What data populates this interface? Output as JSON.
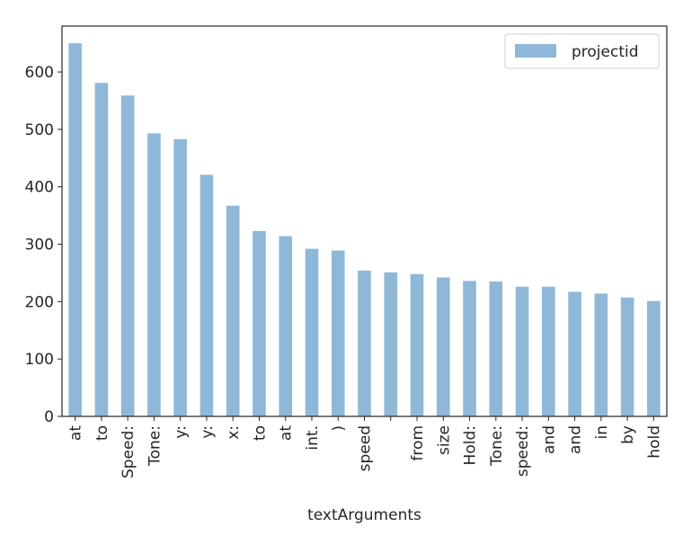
{
  "chart_data": {
    "type": "bar",
    "categories": [
      "at",
      "to",
      "Speed:",
      "Tone:",
      "y:",
      "y:",
      "x:",
      "to",
      "at",
      "int.",
      ")",
      "speed",
      "",
      "from",
      "size",
      "Hold:",
      "Tone:",
      "speed:",
      "and",
      "and",
      "in",
      "by",
      "hold"
    ],
    "series": [
      {
        "name": "projectid",
        "values": [
          650,
          581,
          559,
          493,
          483,
          421,
          367,
          323,
          314,
          292,
          289,
          254,
          251,
          248,
          242,
          236,
          235,
          226,
          226,
          217,
          214,
          207,
          201
        ],
        "color": "#8fb8d8"
      }
    ],
    "title": "",
    "xlabel": "textArguments",
    "ylabel": "",
    "ylim": [
      0,
      680
    ],
    "yticks": [
      0,
      100,
      200,
      300,
      400,
      500,
      600
    ],
    "grid": false,
    "legend": "top-right"
  }
}
